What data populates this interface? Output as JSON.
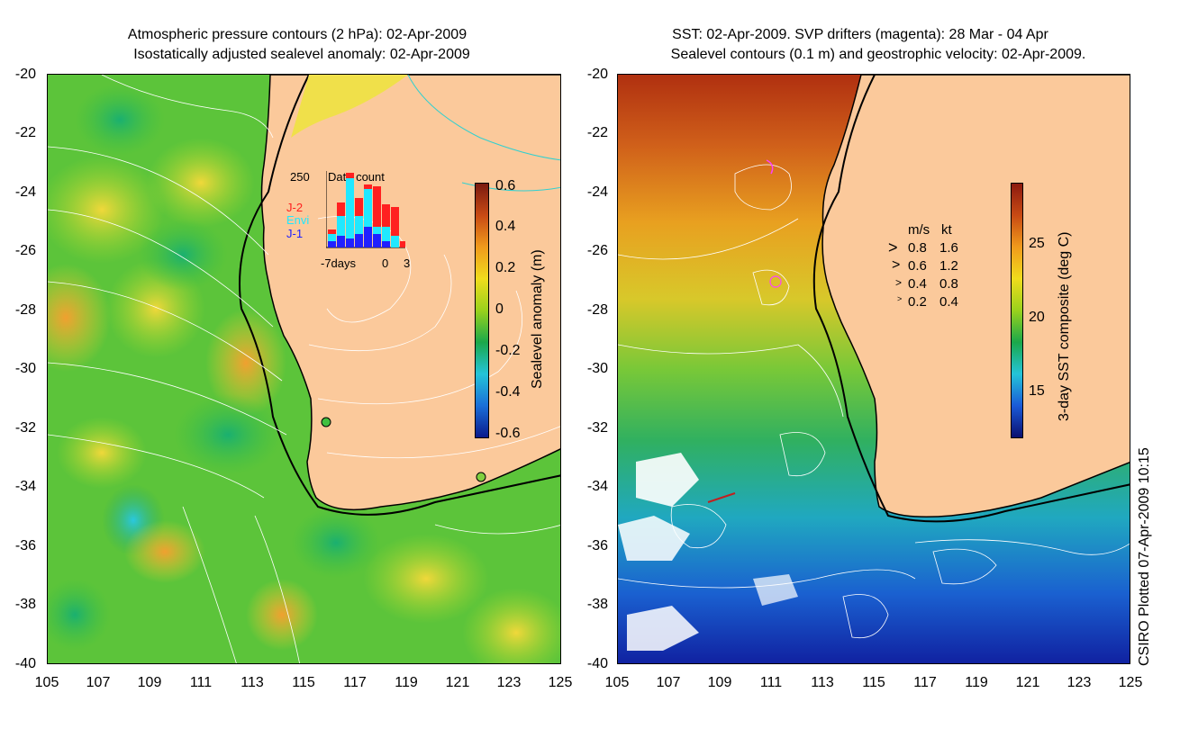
{
  "left_panel": {
    "title_line1": "Atmospheric pressure contours (2 hPa): 02-Apr-2009",
    "title_line2": "Isostatically adjusted sealevel anomaly: 02-Apr-2009",
    "colorbar": {
      "label": "Sealevel anomaly (m)",
      "ticks": [
        "0.6",
        "0.4",
        "0.2",
        "0",
        "-0.2",
        "-0.4",
        "-0.6"
      ],
      "colors": [
        "#0a1a8c",
        "#1a6fd8",
        "#24c4d8",
        "#1aa84a",
        "#9ad21c",
        "#f0dc1c",
        "#f09a1c",
        "#c84a14",
        "#7a1a10"
      ]
    },
    "inset": {
      "count_label": "250",
      "title": "Data count",
      "legend": [
        {
          "name": "J-2",
          "color": "#ff2020"
        },
        {
          "name": "Envi",
          "color": "#20e8ff"
        },
        {
          "name": "J-1",
          "color": "#2020ff"
        }
      ],
      "x_labels": [
        "-7days",
        "0",
        "3"
      ]
    }
  },
  "right_panel": {
    "title_line1": "SST: 02-Apr-2009. SVP drifters (magenta): 28 Mar - 04 Apr",
    "title_line2": "Sealevel contours (0.1 m) and geostrophic velocity: 02-Apr-2009.",
    "colorbar": {
      "label": "3-day SST composite (deg C)",
      "ticks": [
        "25",
        "20",
        "15"
      ],
      "colors": [
        "#0a1070",
        "#1a5ad8",
        "#24c4d8",
        "#1aa84a",
        "#9ad21c",
        "#f0dc1c",
        "#f09a1c",
        "#c84a14",
        "#8c1a10"
      ]
    },
    "velocity_legend": {
      "header_ms": "m/s",
      "header_kt": "kt",
      "rows": [
        {
          "ms": "0.8",
          "kt": "1.6"
        },
        {
          "ms": "0.6",
          "kt": "1.2"
        },
        {
          "ms": "0.4",
          "kt": "0.8"
        },
        {
          "ms": "0.2",
          "kt": "0.4"
        }
      ]
    }
  },
  "y_ticks": [
    "-20",
    "-22",
    "-24",
    "-26",
    "-28",
    "-30",
    "-32",
    "-34",
    "-36",
    "-38",
    "-40"
  ],
  "x_ticks": [
    "105",
    "107",
    "109",
    "111",
    "113",
    "115",
    "117",
    "119",
    "121",
    "123",
    "125"
  ],
  "credit": "CSIRO Plotted 07-Apr-2009 10:15",
  "land_color": "#fbc99b",
  "coast_color": "#000000"
}
